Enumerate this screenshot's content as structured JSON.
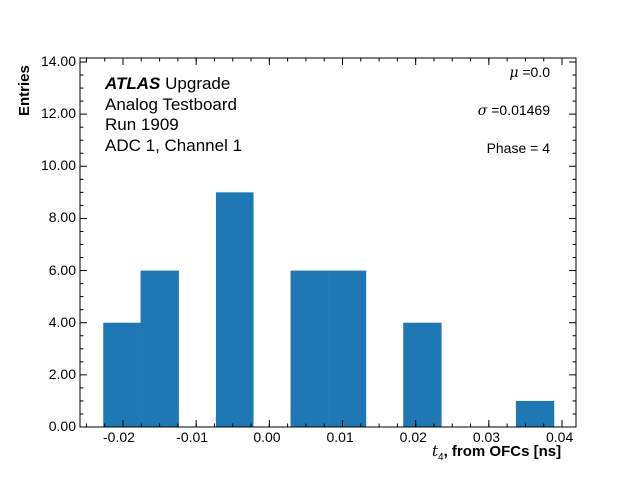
{
  "chart_data": {
    "type": "bar",
    "subtype": "histogram",
    "title": "",
    "xlabel": "t_4, from OFCs [ns]",
    "ylabel": "Entries",
    "xlim": [
      -0.026,
      0.042
    ],
    "ylim": [
      0,
      14
    ],
    "x_ticks": [
      "-0.02",
      "-0.01",
      "0.00",
      "0.01",
      "0.02",
      "0.03",
      "0.04"
    ],
    "y_ticks": [
      "0.00",
      "2.00",
      "4.00",
      "6.00",
      "8.00",
      "10.00",
      "12.00",
      "14.00"
    ],
    "bin_edges": [
      -0.0227,
      -0.0176,
      -0.0124,
      -0.0073,
      -0.0022,
      0.0029,
      0.0081,
      0.0132,
      0.0183,
      0.0235,
      0.0286,
      0.0337,
      0.0389
    ],
    "categories": [
      "-0.0202",
      "-0.0150",
      "-0.0099",
      "-0.0048",
      "0.0004",
      "0.0055",
      "0.0106",
      "0.0158",
      "0.0209",
      "0.0260",
      "0.0312",
      "0.0363"
    ],
    "values": [
      4,
      6,
      0,
      9,
      0,
      6,
      6,
      0,
      4,
      0,
      0,
      1
    ],
    "bar_color": "#1f77b4",
    "grid": false,
    "annotations": {
      "experiment_bold": "ATLAS",
      "experiment_rest": " Upgrade",
      "line2": "Analog Testboard",
      "line3": "Run 1909",
      "line4": "ADC 1, Channel 1",
      "mu": "μ =0.0",
      "sigma": "σ =0.01469",
      "phase": "Phase = 4"
    }
  },
  "labels": {
    "ylabel": "Entries",
    "xlabel_sym": "t",
    "xlabel_sub": "4",
    "xlabel_rest": ", from OFCs [ns]",
    "mu_sym": "μ",
    "mu_val": " =0.0",
    "sigma_sym": "σ",
    "sigma_val": " =0.01469",
    "phase": "Phase = 4",
    "atlas": "ATLAS",
    "upgrade": " Upgrade",
    "line2": "Analog Testboard",
    "line3": "Run 1909",
    "line4": "ADC 1, Channel 1"
  }
}
